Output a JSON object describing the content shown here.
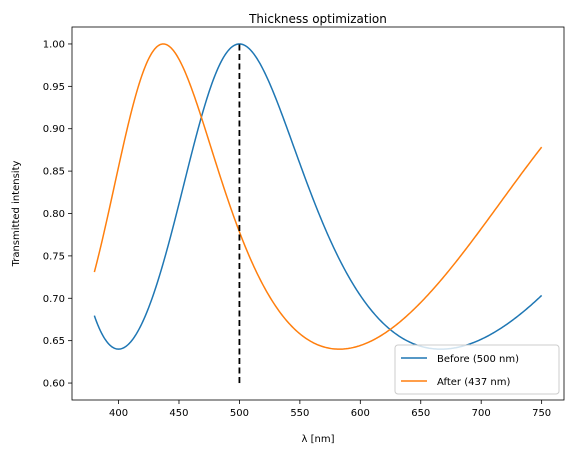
{
  "chart_data": {
    "type": "line",
    "title": "Thickness optimization",
    "xlabel": "λ [nm]",
    "ylabel": "Transmitted intensity",
    "xlim": [
      361.5,
      768.5
    ],
    "ylim": [
      0.58,
      1.02
    ],
    "xticks": [
      400,
      450,
      500,
      550,
      600,
      650,
      700,
      750
    ],
    "yticks": [
      0.6,
      0.65,
      0.7,
      0.75,
      0.8,
      0.85,
      0.9,
      0.95,
      1.0
    ],
    "grid": false,
    "legend_position": "lower-right",
    "model": {
      "type": "fabry-perot",
      "min_intensity": 0.64,
      "x_start": 380,
      "x_end": 750,
      "step": 1
    },
    "series": [
      {
        "name": "Before (500 nm)",
        "thickness_nm": 500,
        "color": "#1f77b4"
      },
      {
        "name": "After (437 nm)",
        "thickness_nm": 437,
        "color": "#ff7f0e"
      }
    ],
    "annotations": [
      {
        "type": "vertical-dashed-line",
        "x": 500,
        "y_from": 0.6,
        "y_to": 1.0,
        "color": "#000000"
      }
    ]
  }
}
